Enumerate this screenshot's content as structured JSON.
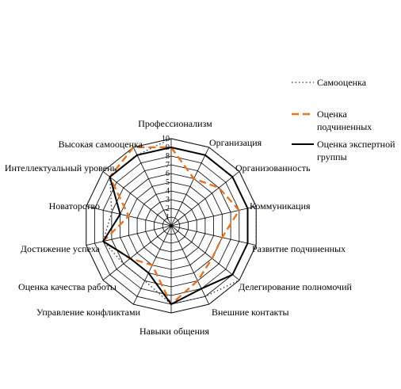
{
  "chart_data": {
    "type": "radar",
    "title": "",
    "categories": [
      "Профессионализм",
      "Организация",
      "Организованность",
      "Коммуникация",
      "Развитие подчиненных",
      "Делегирование полномочий",
      "Внешние контакты",
      "Навыки общения",
      "Управление конфликтами",
      "Оценка качества работы",
      "Достижение успеха",
      "Новаторство",
      "Интеллектуальный уровень",
      "Высокая самооценка"
    ],
    "ticks": [
      "0",
      "1",
      "2",
      "3",
      "4",
      "5",
      "6",
      "7",
      "8",
      "9",
      "10"
    ],
    "rmax": 10,
    "grid": true,
    "legend_position": "right",
    "series": [
      {
        "name": "Самооценка",
        "color": "#1f2f6b",
        "style": "dotted",
        "values": [
          10,
          10,
          10,
          10,
          10,
          10,
          9,
          9,
          7,
          7,
          8,
          7,
          9,
          9
        ]
      },
      {
        "name": "Оценка подчиненных",
        "color": "#e8731f",
        "style": "dashed",
        "values": [
          9,
          6,
          7,
          8,
          6,
          6,
          7,
          9,
          5,
          6,
          8,
          5,
          9,
          10
        ]
      },
      {
        "name": "Оценка экспертной группы",
        "color": "#000000",
        "style": "solid",
        "values": [
          9,
          9,
          9,
          9,
          9,
          9,
          8,
          9,
          6,
          6,
          8,
          6,
          9,
          9
        ]
      }
    ]
  }
}
